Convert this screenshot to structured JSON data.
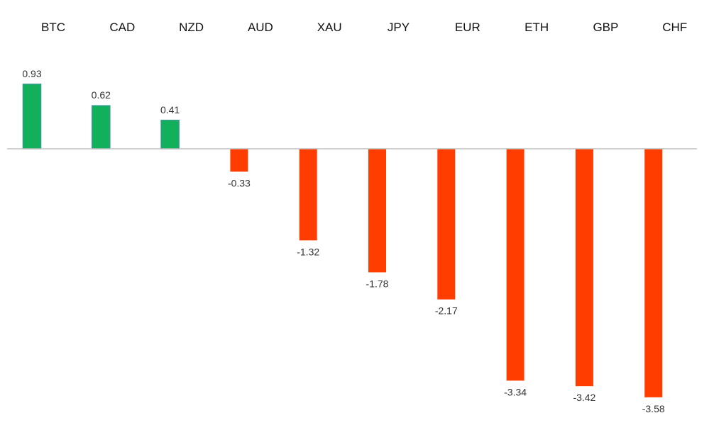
{
  "chart_data": {
    "type": "bar",
    "categories": [
      "BTC",
      "CAD",
      "NZD",
      "AUD",
      "XAU",
      "JPY",
      "EUR",
      "ETH",
      "GBP",
      "CHF"
    ],
    "values": [
      0.93,
      0.62,
      0.41,
      -0.33,
      -1.32,
      -1.78,
      -2.17,
      -3.34,
      -3.42,
      -3.58
    ],
    "value_labels": [
      "0.93",
      "0.62",
      "0.41",
      "-0.33",
      "-1.32",
      "-1.78",
      "-2.17",
      "-3.34",
      "-3.42",
      "-3.58"
    ],
    "title": "",
    "xlabel": "",
    "ylabel": "",
    "category_label_position": "top",
    "grid": false,
    "legend": "none",
    "colors": {
      "positive": "#12b05a",
      "positive_edge": "#2f9c8a",
      "negative": "#ff3d00",
      "baseline": "#bfbfbf"
    }
  }
}
